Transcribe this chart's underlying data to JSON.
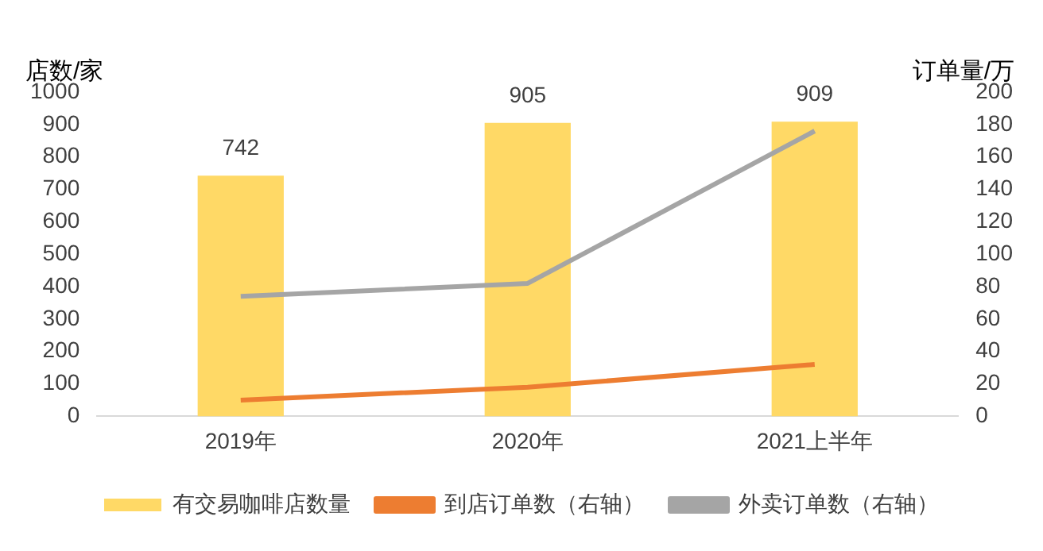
{
  "chart_data": {
    "type": "bar",
    "categories": [
      "2019年",
      "2020年",
      "2021上半年"
    ],
    "ylabel": "店数/家",
    "y2label": "订单量/万",
    "series": [
      {
        "name": "有交易咖啡店数量",
        "color": "#ffd966",
        "values": [
          742,
          905,
          909
        ],
        "value_labels": [
          "742",
          "905",
          "909"
        ]
      },
      {
        "name": "到店订单数（右轴）",
        "type": "line",
        "axis": "y2",
        "color": "#ed7d31",
        "values": [
          10,
          18,
          32
        ]
      },
      {
        "name": "外卖订单数（右轴）",
        "type": "line",
        "axis": "y2",
        "color": "#a5a5a5",
        "values": [
          74,
          82,
          176
        ]
      }
    ],
    "ylim": [
      0,
      1000
    ],
    "yticks": [
      0,
      100,
      200,
      300,
      400,
      500,
      600,
      700,
      800,
      900,
      1000
    ],
    "y2lim": [
      0,
      200
    ],
    "y2ticks": [
      0,
      20,
      40,
      60,
      80,
      100,
      120,
      140,
      160,
      180,
      200
    ],
    "grid": false,
    "legend": "bottom",
    "marker": "none",
    "line_style": "solid"
  }
}
